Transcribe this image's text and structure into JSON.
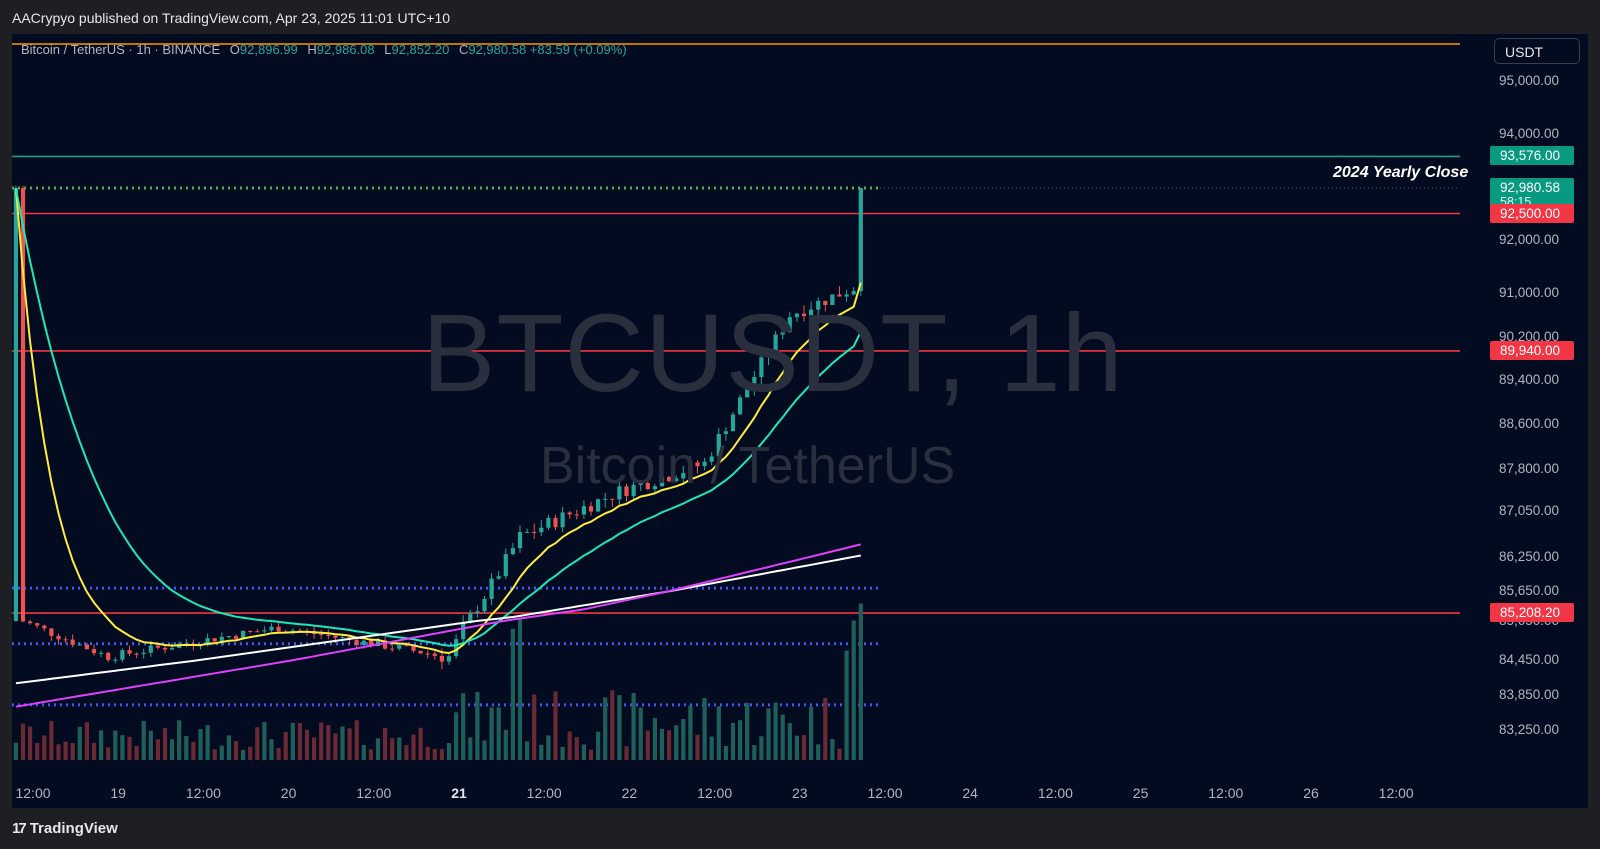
{
  "header": {
    "publish_text": "AACrypyo published on TradingView.com, Apr 23, 2025 11:01 UTC+10"
  },
  "legend": {
    "symbol": "Bitcoin / TetherUS · 1h · BINANCE",
    "open_key": "O",
    "open": "92,896.99",
    "high_key": "H",
    "high": "92,986.08",
    "low_key": "L",
    "low": "92,852.20",
    "close_key": "C",
    "close": "92,980.58",
    "change": "+83.59 (+0.09%)"
  },
  "currency_button": "USDT",
  "watermark": {
    "symbol": "BTCUSDT, 1h",
    "name": "Bitcoin / TetherUS"
  },
  "annotation": "2024 Yearly Close",
  "footer": {
    "brand": "TradingView",
    "logo_icon": "tradingview-logo-icon"
  },
  "colors": {
    "background": "#020b1f",
    "up": "#26a69a",
    "down": "#ef5350",
    "ema_fast": "#ffeb3b",
    "ema_mid": "#1de9b6",
    "sma_long": "#ffffff",
    "ema_long": "#e040fb",
    "resistance_red": "#f23645",
    "yearly_close": "#1b9e8f",
    "orange_top": "#ff9800",
    "dotted_green": "#4caf50",
    "dotted_blue": "#3b5bff"
  },
  "chart_data": {
    "type": "candlestick",
    "title": "Bitcoin / TetherUS · 1h · BINANCE",
    "y_axis": {
      "min": 82700,
      "max": 95600,
      "ticks": [
        "95,000.00",
        "94,000.00",
        "92,000.00",
        "91,000.00",
        "90,200.00",
        "89,400.00",
        "88,600.00",
        "87,800.00",
        "87,050.00",
        "86,250.00",
        "85,650.00",
        "85,050.00",
        "84,450.00",
        "83,850.00",
        "83,250.00"
      ],
      "tick_values": [
        95000,
        94000,
        92000,
        91000,
        90200,
        89400,
        88600,
        87800,
        87050,
        86250,
        85650,
        85050,
        84450,
        83850,
        83250
      ],
      "badges": [
        {
          "label": "93,576.00",
          "value": 93576,
          "color": "#089981"
        },
        {
          "label": "92,980.58",
          "sub": "58:15",
          "value": 92980.58,
          "color": "#089981"
        },
        {
          "label": "92,500.00",
          "value": 92500,
          "color": "#f23645"
        },
        {
          "label": "89,940.00",
          "value": 89940,
          "color": "#f23645"
        },
        {
          "label": "85,208.20",
          "value": 85208.2,
          "color": "#f23645"
        }
      ]
    },
    "x_axis": {
      "labels": [
        "12:00",
        "19",
        "12:00",
        "20",
        "12:00",
        "21",
        "12:00",
        "22",
        "12:00",
        "23",
        "12:00",
        "24",
        "12:00",
        "25",
        "12:00",
        "26",
        "12:00"
      ],
      "bold": [
        "21"
      ]
    },
    "horizontal_levels": [
      {
        "value": 95700,
        "style": "solid",
        "color": "#ff9800"
      },
      {
        "value": 93576,
        "style": "solid",
        "color": "#1b9e8f"
      },
      {
        "value": 92980.58,
        "style": "dotted",
        "color": "#4caf50"
      },
      {
        "value": 92500,
        "style": "solid",
        "color": "#f23645"
      },
      {
        "value": 89940,
        "style": "solid",
        "color": "#f23645"
      },
      {
        "value": 85700,
        "style": "dotted",
        "color": "#3b5bff"
      },
      {
        "value": 85208.2,
        "style": "solid",
        "color": "#f23645"
      },
      {
        "value": 84700,
        "style": "dotted",
        "color": "#3b5bff"
      },
      {
        "value": 83680,
        "style": "dotted",
        "color": "#3b5bff"
      }
    ],
    "key_closes": [
      {
        "x": "19",
        "close": 84500
      },
      {
        "x": "20",
        "close": 84950
      },
      {
        "x": "21",
        "close": 84500
      },
      {
        "x": "21 10:00",
        "close": 86600
      },
      {
        "x": "22",
        "close": 87400
      },
      {
        "x": "22 12:00",
        "close": 87900
      },
      {
        "x": "23",
        "close": 90600
      },
      {
        "x": "23 09:00",
        "close": 91100
      },
      {
        "x": "23 10:00",
        "close": 93300
      },
      {
        "x": "23 11:00",
        "close": 92980.58
      }
    ]
  }
}
